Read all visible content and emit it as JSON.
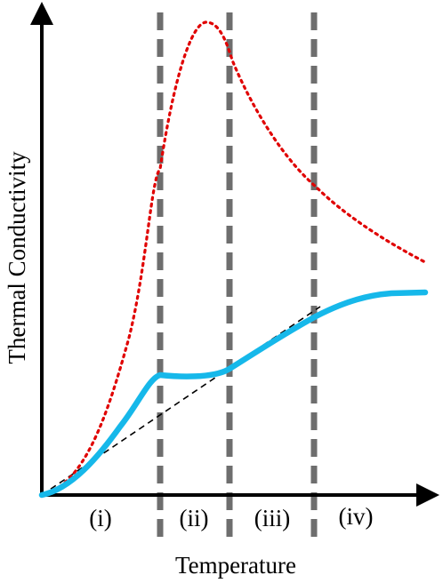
{
  "axes": {
    "x_label": "Temperature",
    "y_label": "Thermal Conductivity"
  },
  "regions": [
    "(i)",
    "(ii)",
    "(iii)",
    "(iv)"
  ],
  "colors": {
    "solid_curve": "#16b8ea",
    "dotted_curve": "#e00000",
    "dashed_line": "#000000",
    "boundary": "#6e6e6e",
    "axis": "#000000"
  }
}
